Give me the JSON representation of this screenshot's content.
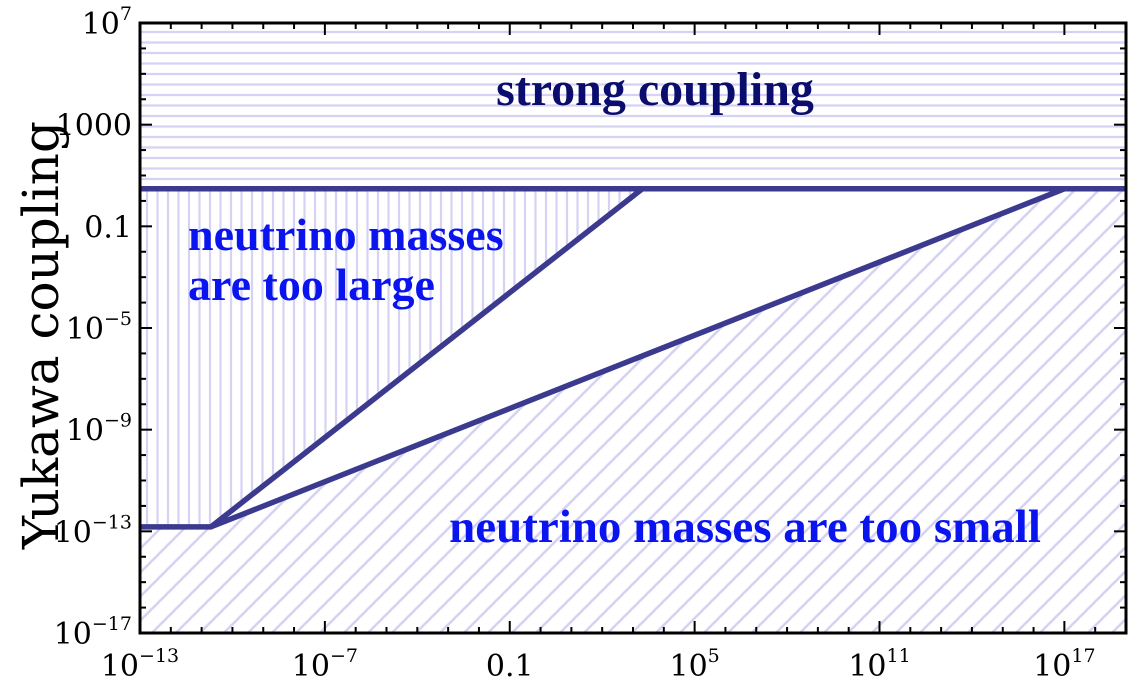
{
  "chart_data": {
    "type": "line",
    "title": "",
    "xlabel": "",
    "ylabel": "Yukawa coupling",
    "xscale": "log",
    "yscale": "log",
    "xlim": [
      1e-13,
      1e+19
    ],
    "ylim": [
      1e-17,
      10000000.0
    ],
    "grid": false,
    "legend": "none",
    "xticks": [
      {
        "base": "10",
        "exp": "−13"
      },
      {
        "base": "10",
        "exp": "−7"
      },
      {
        "base": "0.1",
        "exp": ""
      },
      {
        "base": "10",
        "exp": "5"
      },
      {
        "base": "10",
        "exp": "11"
      },
      {
        "base": "10",
        "exp": "17"
      }
    ],
    "yticks": [
      {
        "base": "10",
        "exp": "−17"
      },
      {
        "base": "10",
        "exp": "−13"
      },
      {
        "base": "10",
        "exp": "−9"
      },
      {
        "base": "10",
        "exp": "−5"
      },
      {
        "base": "0.1",
        "exp": ""
      },
      {
        "base": "1000",
        "exp": ""
      },
      {
        "base": "10",
        "exp": "7"
      }
    ],
    "series": [
      {
        "points": [
          [
            1e-13,
            1.5e-13
          ],
          [
            2e-11,
            1.5e-13
          ],
          [
            2000.0,
            3
          ]
        ]
      },
      {
        "points": [
          [
            2e-11,
            1.5e-13
          ],
          [
            1e+17,
            3
          ]
        ]
      },
      {
        "points": [
          [
            1e-13,
            3
          ],
          [
            1e+19,
            3
          ]
        ]
      }
    ],
    "regions": [
      {
        "label": "strong coupling",
        "hatch": "horizontal"
      },
      {
        "label": "neutrino masses are too large",
        "lines": [
          "neutrino masses",
          "are too large"
        ],
        "hatch": "vertical"
      },
      {
        "label": "neutrino masses are too small",
        "hatch": "diagonal"
      }
    ]
  },
  "colors": {
    "line": "#3b3a8f",
    "hatch": "#d6d2f4",
    "strong_text": "#0b0d6e",
    "neutrino_text": "#0a14ee",
    "axis": "#000000"
  }
}
